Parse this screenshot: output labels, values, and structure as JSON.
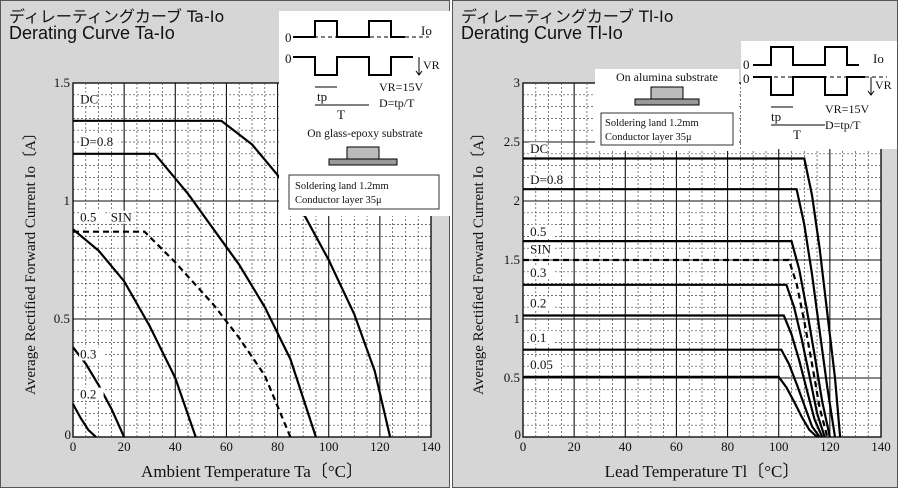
{
  "chart_data": [
    {
      "type": "line",
      "title_jp": "ディレーティングカーブ Ta-Io",
      "title": "Derating Curve Ta-Io",
      "xlabel": "Ambient Temperature  Ta〔°C〕",
      "ylabel": "Average Rectified Forward Current  Io〔A〕",
      "xlim": [
        0,
        140
      ],
      "ylim": [
        0,
        1.5
      ],
      "xticks": [
        "0",
        "20",
        "40",
        "60",
        "80",
        "100",
        "120",
        "140"
      ],
      "yticks": [
        "0",
        "0.5",
        "1",
        "1.5"
      ],
      "grid": true,
      "series": [
        {
          "name": "DC",
          "style": "solid",
          "x": [
            0,
            58,
            70,
            80,
            90,
            100,
            110,
            118,
            124
          ],
          "y": [
            1.34,
            1.34,
            1.24,
            1.11,
            0.95,
            0.75,
            0.52,
            0.28,
            0.0
          ]
        },
        {
          "name": "D=0.8",
          "style": "solid",
          "x": [
            0,
            32,
            45,
            55,
            65,
            75,
            85,
            95
          ],
          "y": [
            1.2,
            1.2,
            1.03,
            0.88,
            0.73,
            0.55,
            0.33,
            0.0
          ]
        },
        {
          "name": "SIN",
          "style": "dashed",
          "x": [
            0,
            28,
            40,
            55,
            65,
            75,
            85
          ],
          "y": [
            0.87,
            0.87,
            0.74,
            0.56,
            0.42,
            0.26,
            0.0
          ]
        },
        {
          "name": "0.5",
          "style": "solid",
          "x": [
            0,
            10,
            20,
            30,
            40,
            48
          ],
          "y": [
            0.88,
            0.79,
            0.66,
            0.47,
            0.25,
            0.0
          ]
        },
        {
          "name": "0.3",
          "style": "solid",
          "x": [
            0,
            5,
            10,
            15,
            20
          ],
          "y": [
            0.38,
            0.31,
            0.22,
            0.12,
            0.0
          ]
        },
        {
          "name": "0.2",
          "style": "solid",
          "x": [
            0,
            3,
            6,
            9
          ],
          "y": [
            0.14,
            0.08,
            0.03,
            0.0
          ]
        }
      ],
      "inset": {
        "io_label": "Io",
        "vr_label": "VR",
        "zero_a": "0",
        "zero_b": "0",
        "tp_label": "tp",
        "t_label": "T",
        "eq1": "VR=15V",
        "eq2": "D=tp/T",
        "substrate": "On glass-epoxy substrate",
        "land": "Soldering land 1.2mm",
        "layer": "Conductor layer 35μ"
      }
    },
    {
      "type": "line",
      "title_jp": "ディレーティングカーブ Tl-Io",
      "title": "Derating Curve Tl-Io",
      "xlabel": "Lead Temperature  Tl〔°C〕",
      "ylabel": "Average Rectified Forward Current  Io〔A〕",
      "xlim": [
        0,
        140
      ],
      "ylim": [
        0,
        3
      ],
      "xticks": [
        "0",
        "20",
        "40",
        "60",
        "80",
        "100",
        "120",
        "140"
      ],
      "yticks": [
        "0",
        "0.5",
        "1",
        "1.5",
        "2",
        "2.5",
        "3"
      ],
      "grid": true,
      "series": [
        {
          "name": "DC",
          "style": "solid",
          "x": [
            0,
            110,
            113,
            116,
            119,
            122,
            124
          ],
          "y": [
            2.36,
            2.36,
            2.05,
            1.6,
            1.05,
            0.5,
            0.0
          ]
        },
        {
          "name": "D=0.8",
          "style": "solid",
          "x": [
            0,
            107,
            110,
            113,
            116,
            119,
            122
          ],
          "y": [
            2.1,
            2.1,
            1.8,
            1.38,
            0.9,
            0.42,
            0.0
          ]
        },
        {
          "name": "0.5",
          "style": "solid",
          "x": [
            0,
            105,
            108,
            111,
            114,
            117,
            120
          ],
          "y": [
            1.66,
            1.66,
            1.42,
            1.08,
            0.7,
            0.3,
            0.0
          ]
        },
        {
          "name": "SIN",
          "style": "dashed",
          "x": [
            0,
            104,
            107,
            110,
            113,
            116,
            119
          ],
          "y": [
            1.5,
            1.5,
            1.3,
            0.98,
            0.62,
            0.25,
            0.0
          ]
        },
        {
          "name": "0.3",
          "style": "solid",
          "x": [
            0,
            103,
            106,
            109,
            112,
            115,
            118
          ],
          "y": [
            1.29,
            1.29,
            1.1,
            0.83,
            0.52,
            0.2,
            0.0
          ]
        },
        {
          "name": "0.2",
          "style": "solid",
          "x": [
            0,
            102,
            105,
            108,
            111,
            114,
            117
          ],
          "y": [
            1.03,
            1.03,
            0.87,
            0.65,
            0.4,
            0.15,
            0.0
          ]
        },
        {
          "name": "0.1",
          "style": "solid",
          "x": [
            0,
            101,
            104,
            107,
            110,
            113,
            116
          ],
          "y": [
            0.74,
            0.74,
            0.62,
            0.45,
            0.27,
            0.09,
            0.0
          ]
        },
        {
          "name": "0.05",
          "style": "solid",
          "x": [
            0,
            100,
            103,
            106,
            109,
            112,
            115
          ],
          "y": [
            0.51,
            0.51,
            0.42,
            0.3,
            0.17,
            0.06,
            0.0
          ]
        }
      ],
      "inset": {
        "io_label": "Io",
        "vr_label": "VR",
        "zero_a": "0",
        "zero_b": "0",
        "tp_label": "tp",
        "t_label": "T",
        "eq1": "VR=15V",
        "eq2": "D=tp/T",
        "substrate": "On alumina substrate",
        "land": "Soldering land 1.2mm",
        "layer": "Conductor layer 35μ"
      }
    }
  ]
}
